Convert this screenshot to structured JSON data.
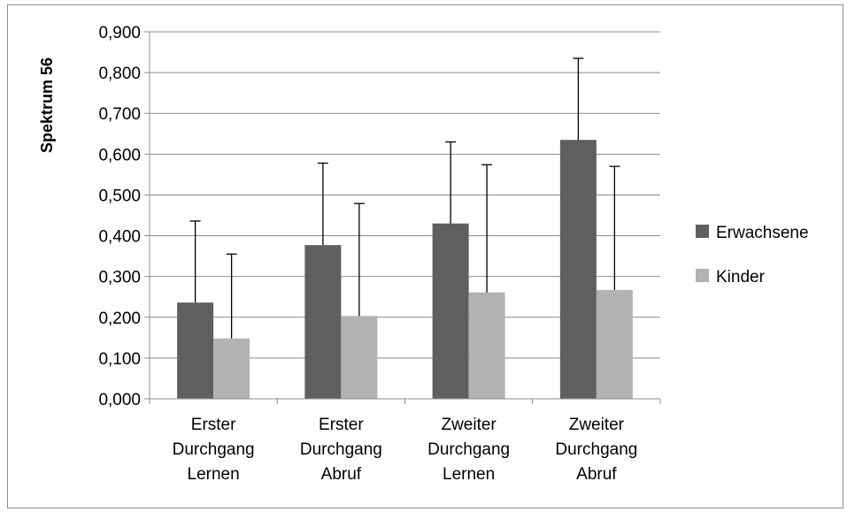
{
  "chart_data": {
    "type": "bar",
    "ylabel": "Spektrum 56",
    "xlabel": "",
    "ylim": [
      0,
      0.9
    ],
    "yticks": [
      "0,000",
      "0,100",
      "0,200",
      "0,300",
      "0,400",
      "0,500",
      "0,600",
      "0,700",
      "0,800",
      "0,900"
    ],
    "grid": true,
    "legend_position": "right",
    "categories": [
      [
        "Erster",
        "Durchgang",
        "Lernen"
      ],
      [
        "Erster",
        "Durchgang",
        "Abruf"
      ],
      [
        "Zweiter",
        "Durchgang",
        "Lernen"
      ],
      [
        "Zweiter",
        "Durchgang",
        "Abruf"
      ]
    ],
    "series": [
      {
        "name": "Erwachsene",
        "color": "#5f5f5f",
        "values": [
          0.236,
          0.377,
          0.43,
          0.635
        ],
        "error_upper": [
          0.436,
          0.578,
          0.63,
          0.835
        ]
      },
      {
        "name": "Kinder",
        "color": "#b2b2b2",
        "values": [
          0.148,
          0.203,
          0.261,
          0.267
        ],
        "error_upper": [
          0.355,
          0.479,
          0.574,
          0.57
        ]
      }
    ]
  }
}
